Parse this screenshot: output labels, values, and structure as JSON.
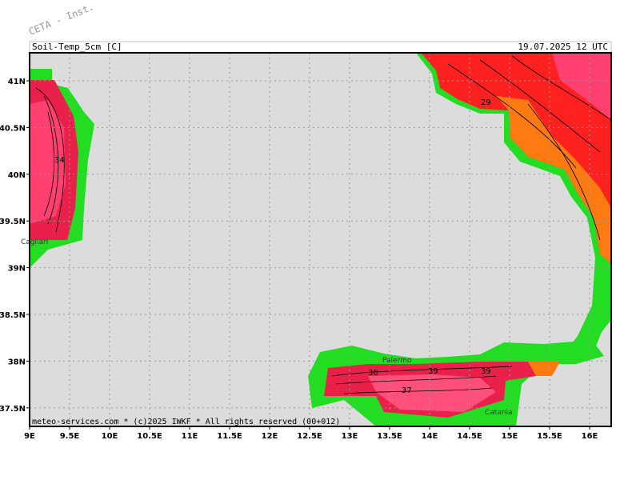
{
  "header": {
    "watermark": "CETA - Inst.",
    "left": "Soil-Temp_5cm [C]",
    "right": "19.07.2025 12 UTC"
  },
  "footer": "meteo-services.com * (c)2025 IWKF * All rights reserved (00+012)",
  "map": {
    "lon_ticks": [
      {
        "value": 9,
        "label": "9E"
      },
      {
        "value": 9.5,
        "label": "9.5E"
      },
      {
        "value": 10,
        "label": "10E"
      },
      {
        "value": 10.5,
        "label": "10.5E"
      },
      {
        "value": 11,
        "label": "11E"
      },
      {
        "value": 11.5,
        "label": "11.5E"
      },
      {
        "value": 12,
        "label": "12E"
      },
      {
        "value": 12.5,
        "label": "12.5E"
      },
      {
        "value": 13,
        "label": "13E"
      },
      {
        "value": 13.5,
        "label": "13.5E"
      },
      {
        "value": 14,
        "label": "14E"
      },
      {
        "value": 14.5,
        "label": "14.5E"
      },
      {
        "value": 15,
        "label": "15E"
      },
      {
        "value": 15.5,
        "label": "15.5E"
      },
      {
        "value": 16,
        "label": "16E"
      }
    ],
    "lat_ticks": [
      {
        "value": 41,
        "label": "41N"
      },
      {
        "value": 40.5,
        "label": "40.5N"
      },
      {
        "value": 40,
        "label": "40N"
      },
      {
        "value": 39.5,
        "label": "39.5N"
      },
      {
        "value": 39,
        "label": "39N"
      },
      {
        "value": 38.5,
        "label": "38.5N"
      },
      {
        "value": 38,
        "label": "38N"
      },
      {
        "value": 37.5,
        "label": "37.5N"
      }
    ],
    "places": [
      "Cagliari",
      "Palermo",
      "Catania"
    ],
    "contour_labels": [
      "34",
      "29",
      "36",
      "39",
      "39",
      "37"
    ]
  }
}
